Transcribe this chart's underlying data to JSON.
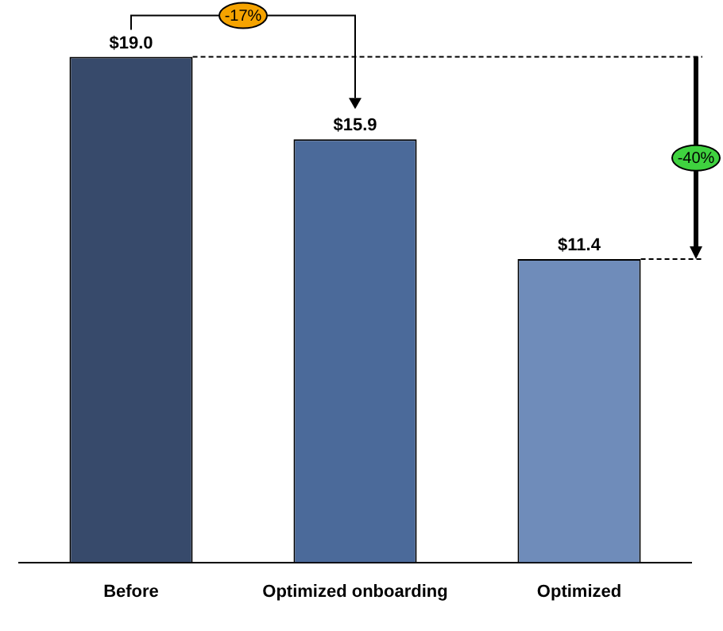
{
  "chart_data": {
    "type": "bar",
    "categories": [
      "Before",
      "Optimized onboarding",
      "Optimized"
    ],
    "values": [
      19.0,
      15.9,
      11.4
    ],
    "colors": [
      "#374a6b",
      "#4b6a9a",
      "#6f8cba"
    ],
    "value_labels": [
      "$19.0",
      "$15.9",
      "$11.4"
    ],
    "annotations": [
      "-17%",
      "-40%"
    ],
    "tick_labels": "x",
    "grid": false,
    "legend": false
  }
}
